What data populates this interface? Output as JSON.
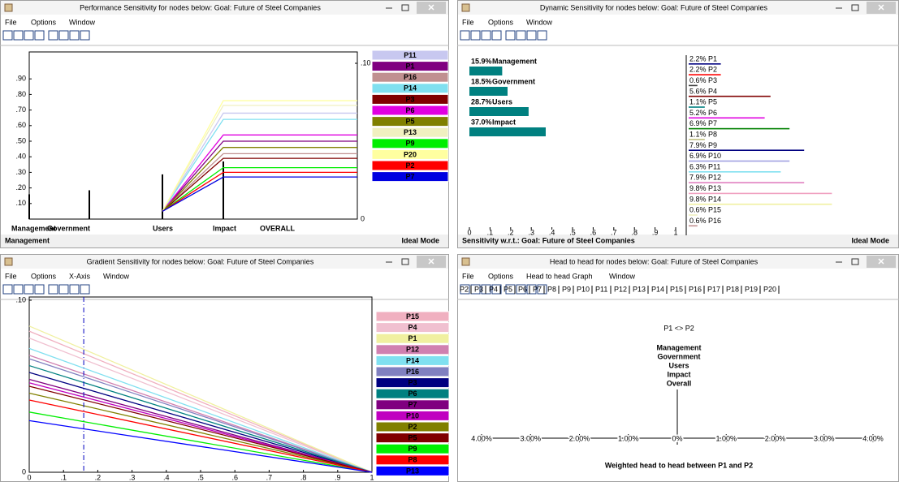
{
  "windows": [
    {
      "title": "Performance Sensitivity for nodes below: Goal: Future of Steel Companies",
      "menu": [
        "File",
        "Options",
        "Window"
      ],
      "status": [
        "Management",
        "Ideal Mode"
      ]
    },
    {
      "title": "Dynamic Sensitivity for nodes below: Goal: Future of Steel Companies",
      "menu": [
        "File",
        "Options",
        "Window"
      ],
      "status": [
        "Sensitivity w.r.t.: Goal: Future of Steel Companies",
        "Ideal Mode"
      ]
    },
    {
      "title": "Gradient Sensitivity for nodes below: Goal: Future of Steel Companies",
      "menu": [
        "File",
        "Options",
        "X-Axis",
        "Window"
      ]
    },
    {
      "title": "Head to head for nodes below: Goal: Future of Steel Companies",
      "menu": [
        "File",
        "Options",
        "Head to head Graph",
        "Window"
      ]
    }
  ],
  "chart_data": [
    {
      "type": "performance",
      "categories": [
        "Management",
        "Government",
        "Users",
        "Impact",
        "OVERALL"
      ],
      "criteria_values": [
        0.159,
        0.185,
        0.287,
        0.37,
        null
      ],
      "ylim": [
        0,
        1
      ],
      "yticks": [
        {
          "value": 0.1,
          "label": ".10"
        },
        {
          "value": 0.2,
          "label": ".20"
        },
        {
          "value": 0.3,
          "label": ".30"
        },
        {
          "value": 0.4,
          "label": ".40"
        },
        {
          "value": 0.5,
          "label": ".50"
        },
        {
          "value": 0.6,
          "label": ".60"
        },
        {
          "value": 0.7,
          "label": ".70"
        },
        {
          "value": 0.8,
          "label": ".80"
        },
        {
          "value": 0.9,
          "label": ".90"
        }
      ],
      "y2lim": [
        0,
        0.1
      ],
      "y2ticks": [
        0,
        {
          "value": 0.1,
          "label": ".10"
        }
      ],
      "series": [
        {
          "name": "P11",
          "color": "#c8c8f0",
          "axis": "y2",
          "values": [
            null,
            null,
            0.005,
            0.068,
            0.068
          ]
        },
        {
          "name": "P1",
          "color": "#800080",
          "axis": "y2",
          "values": [
            null,
            null,
            0.005,
            0.05,
            0.05
          ]
        },
        {
          "name": "P16",
          "color": "#c09090",
          "axis": "y2",
          "values": [
            null,
            null,
            0.005,
            0.042,
            0.042
          ]
        },
        {
          "name": "P14",
          "color": "#80e0f0",
          "axis": "y2",
          "values": [
            null,
            null,
            0.005,
            0.064,
            0.064
          ]
        },
        {
          "name": "P3",
          "color": "#800000",
          "axis": "y2",
          "values": [
            null,
            null,
            0.005,
            0.039,
            0.039
          ]
        },
        {
          "name": "P6",
          "color": "#e000e0",
          "axis": "y2",
          "values": [
            null,
            null,
            0.005,
            0.054,
            0.054
          ]
        },
        {
          "name": "P5",
          "color": "#808000",
          "axis": "y2",
          "values": [
            null,
            null,
            0.005,
            0.046,
            0.046
          ]
        },
        {
          "name": "P13",
          "color": "#f0f0c0",
          "axis": "y2",
          "values": [
            null,
            null,
            0.005,
            0.073,
            0.073
          ]
        },
        {
          "name": "P9",
          "color": "#00ee00",
          "axis": "y2",
          "values": [
            null,
            null,
            0.005,
            0.033,
            0.033
          ]
        },
        {
          "name": "P20",
          "color": "#ffffa0",
          "axis": "y2",
          "values": [
            null,
            null,
            0.005,
            0.076,
            0.076
          ]
        },
        {
          "name": "P2",
          "color": "#ff0000",
          "axis": "y2",
          "values": [
            null,
            null,
            0.005,
            0.03,
            0.03
          ]
        },
        {
          "name": "P7",
          "color": "#0000e0",
          "axis": "y2",
          "values": [
            null,
            null,
            0.005,
            0.027,
            0.027
          ]
        }
      ]
    },
    {
      "type": "dynamic",
      "criteria": {
        "categories": [
          "Management",
          "Government",
          "Users",
          "Impact"
        ],
        "values": [
          0.159,
          0.185,
          0.287,
          0.37
        ],
        "value_labels": [
          "15.9%",
          "18.5%",
          "28.7%",
          "37.0%"
        ],
        "color": "#008080"
      },
      "xlim": [
        0,
        1
      ],
      "xticks": [
        0,
        {
          "value": 0.1,
          "label": ".1"
        },
        {
          "value": 0.2,
          "label": ".2"
        },
        {
          "value": 0.3,
          "label": ".3"
        },
        {
          "value": 0.4,
          "label": ".4"
        },
        {
          "value": 0.5,
          "label": ".5"
        },
        {
          "value": 0.6,
          "label": ".6"
        },
        {
          "value": 0.7,
          "label": ".7"
        },
        {
          "value": 0.8,
          "label": ".8"
        },
        {
          "value": 0.9,
          "label": ".9"
        },
        1
      ],
      "alternatives": {
        "categories": [
          "P1",
          "P2",
          "P3",
          "P4",
          "P5",
          "P6",
          "P7",
          "P8",
          "P9",
          "P10",
          "P11",
          "P12",
          "P13",
          "P14",
          "P15",
          "P16"
        ],
        "values": [
          0.022,
          0.022,
          0.006,
          0.056,
          0.011,
          0.052,
          0.069,
          0.011,
          0.079,
          0.069,
          0.063,
          0.079,
          0.098,
          0.098,
          0.006,
          0.006
        ],
        "value_labels": [
          "2.2%",
          "2.2%",
          "0.6%",
          "5.6%",
          "1.1%",
          "5.2%",
          "6.9%",
          "1.1%",
          "7.9%",
          "6.9%",
          "6.3%",
          "7.9%",
          "9.8%",
          "9.8%",
          "0.6%",
          "0.6%"
        ],
        "colors": [
          "#000080",
          "#ff0000",
          "#404040",
          "#800000",
          "#008080",
          "#e000e0",
          "#008000",
          "#c0c080",
          "#000080",
          "#a0a0e0",
          "#80e0f0",
          "#e080c0",
          "#f0a0c0",
          "#f0f0a0",
          "#f0f0c0",
          "#c09090"
        ],
        "xlim": [
          0,
          0.1
        ]
      }
    },
    {
      "type": "gradient",
      "x": [
        0,
        1
      ],
      "xlim": [
        0,
        1
      ],
      "xticks": [
        0,
        {
          "value": 0.1,
          "label": ".1"
        },
        {
          "value": 0.2,
          "label": ".2"
        },
        {
          "value": 0.3,
          "label": ".3"
        },
        {
          "value": 0.4,
          "label": ".4"
        },
        {
          "value": 0.5,
          "label": ".5"
        },
        {
          "value": 0.6,
          "label": ".6"
        },
        {
          "value": 0.7,
          "label": ".7"
        },
        {
          "value": 0.8,
          "label": ".8"
        },
        {
          "value": 0.9,
          "label": ".9"
        },
        1
      ],
      "ylim": [
        0,
        0.1
      ],
      "yticks": [
        0,
        {
          "value": 0.1,
          "label": ".10"
        }
      ],
      "current_weight": 0.159,
      "series": [
        {
          "name": "P15",
          "color": "#f0b0c0",
          "values": [
            0.082,
            0
          ]
        },
        {
          "name": "P4",
          "color": "#f0c0d0",
          "values": [
            0.078,
            0
          ]
        },
        {
          "name": "P1",
          "color": "#f0f0a0",
          "values": [
            0.085,
            0
          ]
        },
        {
          "name": "P12",
          "color": "#d080b0",
          "values": [
            0.068,
            0
          ]
        },
        {
          "name": "P14",
          "color": "#80e0f0",
          "values": [
            0.072,
            0
          ]
        },
        {
          "name": "P16",
          "color": "#8080c0",
          "values": [
            0.066,
            0
          ]
        },
        {
          "name": "P3",
          "color": "#000080",
          "values": [
            0.058,
            0
          ]
        },
        {
          "name": "P6",
          "color": "#008080",
          "values": [
            0.062,
            0
          ]
        },
        {
          "name": "P7",
          "color": "#800080",
          "values": [
            0.054,
            0
          ]
        },
        {
          "name": "P10",
          "color": "#c000c0",
          "values": [
            0.052,
            0
          ]
        },
        {
          "name": "P2",
          "color": "#808000",
          "values": [
            0.046,
            0
          ]
        },
        {
          "name": "P5",
          "color": "#800000",
          "values": [
            0.05,
            0
          ]
        },
        {
          "name": "P9",
          "color": "#00ee00",
          "values": [
            0.035,
            0
          ]
        },
        {
          "name": "P8",
          "color": "#ff0000",
          "values": [
            0.042,
            0
          ]
        },
        {
          "name": "P13",
          "color": "#0000ff",
          "values": [
            0.03,
            0
          ]
        }
      ]
    },
    {
      "type": "head_to_head",
      "tabs": [
        "P2",
        "P3",
        "P4",
        "P5",
        "P6",
        "P7",
        "P8",
        "P9",
        "P10",
        "P11",
        "P12",
        "P13",
        "P14",
        "P15",
        "P16",
        "P17",
        "P18",
        "P19",
        "P20"
      ],
      "comparison": "P1 <> P2",
      "categories": [
        "Management",
        "Government",
        "Users",
        "Impact",
        "Overall"
      ],
      "xlim": [
        -4,
        4
      ],
      "xticks": [
        {
          "value": -4,
          "label": "4.00%"
        },
        {
          "value": -3,
          "label": "3.00%"
        },
        {
          "value": -2,
          "label": "2.00%"
        },
        {
          "value": -1,
          "label": "1.00%"
        },
        {
          "value": 0,
          "label": "0%"
        },
        {
          "value": 1,
          "label": "1.00%"
        },
        {
          "value": 2,
          "label": "2.00%"
        },
        {
          "value": 3,
          "label": "3.00%"
        },
        {
          "value": 4,
          "label": "4.00%"
        }
      ],
      "title": "Weighted head to head between P1 and P2"
    }
  ]
}
